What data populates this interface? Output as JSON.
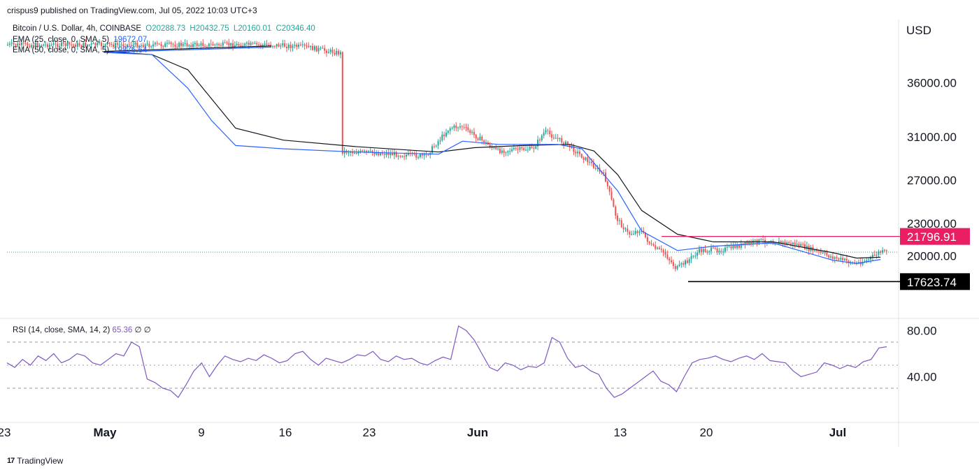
{
  "header": {
    "publish_text": "crispus9 published on TradingView.com, Jul 05, 2022 10:03 UTC+3"
  },
  "legend": {
    "symbol": "Bitcoin / U.S. Dollar, 4h, COINBASE",
    "open": "O20288.73",
    "high": "H20432.75",
    "low": "L20160.01",
    "close": "C20346.40",
    "ema1_label": "EMA (25, close, 0, SMA, 5)",
    "ema1_value": "19672.07",
    "ema2_label": "EMA (50, close, 0, SMA, 5)",
    "ema2_value": "19876.64"
  },
  "rsi_legend": {
    "label": "RSI (14, close, SMA, 14, 2)",
    "value": "65.36",
    "extra1": "∅",
    "extra2": "∅"
  },
  "axis": {
    "currency": "USD",
    "price_ticks": [
      "36000.00",
      "31000.00",
      "27000.00",
      "23000.00",
      "20000.00"
    ],
    "rsi_ticks": [
      "80.00",
      "40.00"
    ],
    "date_ticks": [
      "23",
      "May",
      "9",
      "16",
      "23",
      "Jun",
      "13",
      "20",
      "Jul"
    ]
  },
  "markers": {
    "resistance": "21796.91",
    "support": "17623.74"
  },
  "footer": {
    "brand": "TradingView"
  },
  "colors": {
    "up": "#26a69a",
    "down": "#ef5350",
    "ema25": "#2962ff",
    "ema50": "#131722",
    "rsi": "#7e57c2",
    "resistance": "#e91e63",
    "support": "#000000"
  },
  "chart_data": [
    {
      "type": "line",
      "title": "Bitcoin / U.S. Dollar, 4h, COINBASE",
      "ylabel": "USD",
      "ylim": [
        16900,
        40000
      ],
      "x_ticks": [
        "23",
        "May",
        "9",
        "16",
        "23",
        "Jun",
        "13",
        "20",
        "Jul"
      ],
      "series": [
        {
          "name": "Price (close)",
          "x": [
            "Apr 23",
            "Apr 26",
            "Apr 29",
            "May 2",
            "May 5",
            "May 6",
            "May 8",
            "May 10",
            "May 11",
            "May 12",
            "May 13",
            "May 16",
            "May 20",
            "May 24",
            "May 28",
            "May 30",
            "May 31",
            "Jun 3",
            "Jun 6",
            "Jun 7",
            "Jun 9",
            "Jun 11",
            "Jun 12",
            "Jun 13",
            "Jun 14",
            "Jun 15",
            "Jun 16",
            "Jun 17",
            "Jun 18",
            "Jun 19",
            "Jun 20",
            "Jun 22",
            "Jun 25",
            "Jun 28",
            "Jul 1",
            "Jul 3",
            "Jul 4",
            "Jul 5"
          ],
          "values": [
            39500,
            39300,
            38700,
            38700,
            38500,
            36000,
            34800,
            31000,
            29800,
            28700,
            29700,
            30100,
            29700,
            29500,
            29200,
            31800,
            32000,
            29700,
            29900,
            31500,
            30200,
            28400,
            27400,
            23500,
            22000,
            22400,
            20800,
            20300,
            18800,
            19600,
            20500,
            20600,
            21400,
            21100,
            19900,
            19300,
            19600,
            20346.4
          ]
        },
        {
          "name": "EMA (25, close, 0, SMA, 5)",
          "x": [
            "Apr 23",
            "May 1",
            "May 5",
            "May 8",
            "May 10",
            "May 12",
            "May 16",
            "May 22",
            "May 29",
            "May 31",
            "Jun 3",
            "Jun 8",
            "Jun 10",
            "Jun 13",
            "Jun 15",
            "Jun 18",
            "Jun 21",
            "Jun 26",
            "Jul 1",
            "Jul 3",
            "Jul 5"
          ],
          "values": [
            39300,
            38800,
            38600,
            35500,
            32500,
            30200,
            29900,
            29600,
            29400,
            30600,
            30300,
            30300,
            29900,
            26000,
            22300,
            20500,
            20900,
            21200,
            19600,
            19300,
            19672.07
          ]
        },
        {
          "name": "EMA (50, close, 0, SMA, 5)",
          "x": [
            "Apr 23",
            "May 1",
            "May 5",
            "May 8",
            "May 10",
            "May 12",
            "May 16",
            "May 22",
            "May 29",
            "Jun 1",
            "Jun 5",
            "Jun 9",
            "Jun 11",
            "Jun 13",
            "Jun 15",
            "Jun 18",
            "Jun 21",
            "Jun 26",
            "Jul 1",
            "Jul 3",
            "Jul 5"
          ],
          "values": [
            39400,
            38900,
            38600,
            37200,
            34500,
            31800,
            30700,
            30100,
            29600,
            30000,
            30200,
            30300,
            29700,
            27500,
            24200,
            22000,
            21300,
            21300,
            20300,
            19800,
            19876.64
          ]
        }
      ],
      "annotations": [
        {
          "label": "21796.91",
          "value": 21796.91
        },
        {
          "label": "17623.74",
          "value": 17623.74
        }
      ]
    },
    {
      "type": "line",
      "title": "RSI (14, close, SMA, 14, 2)",
      "ylim": [
        0,
        100
      ],
      "series": [
        {
          "name": "RSI (14, close, SMA, 14, 2)",
          "values": [
            52,
            48,
            55,
            50,
            58,
            54,
            60,
            52,
            55,
            60,
            58,
            52,
            50,
            55,
            60,
            58,
            70,
            66,
            38,
            35,
            30,
            28,
            22,
            33,
            45,
            52,
            40,
            50,
            58,
            55,
            53,
            56,
            54,
            59,
            56,
            52,
            54,
            60,
            62,
            55,
            50,
            56,
            54,
            52,
            55,
            59,
            58,
            62,
            55,
            53,
            58,
            55,
            56,
            52,
            50,
            54,
            57,
            55,
            84,
            80,
            72,
            60,
            48,
            45,
            52,
            50,
            46,
            49,
            48,
            52,
            74,
            70,
            56,
            48,
            50,
            45,
            42,
            30,
            22,
            25,
            30,
            35,
            40,
            45,
            36,
            33,
            27,
            40,
            52,
            55,
            56,
            58,
            55,
            53,
            56,
            58,
            55,
            60,
            54,
            53,
            52,
            45,
            40,
            42,
            44,
            52,
            50,
            47,
            50,
            48,
            53,
            55,
            65,
            66
          ]
        }
      ],
      "annotations": [
        {
          "label": "80.00",
          "value": 80
        },
        {
          "label": "40.00",
          "value": 40
        }
      ]
    }
  ]
}
